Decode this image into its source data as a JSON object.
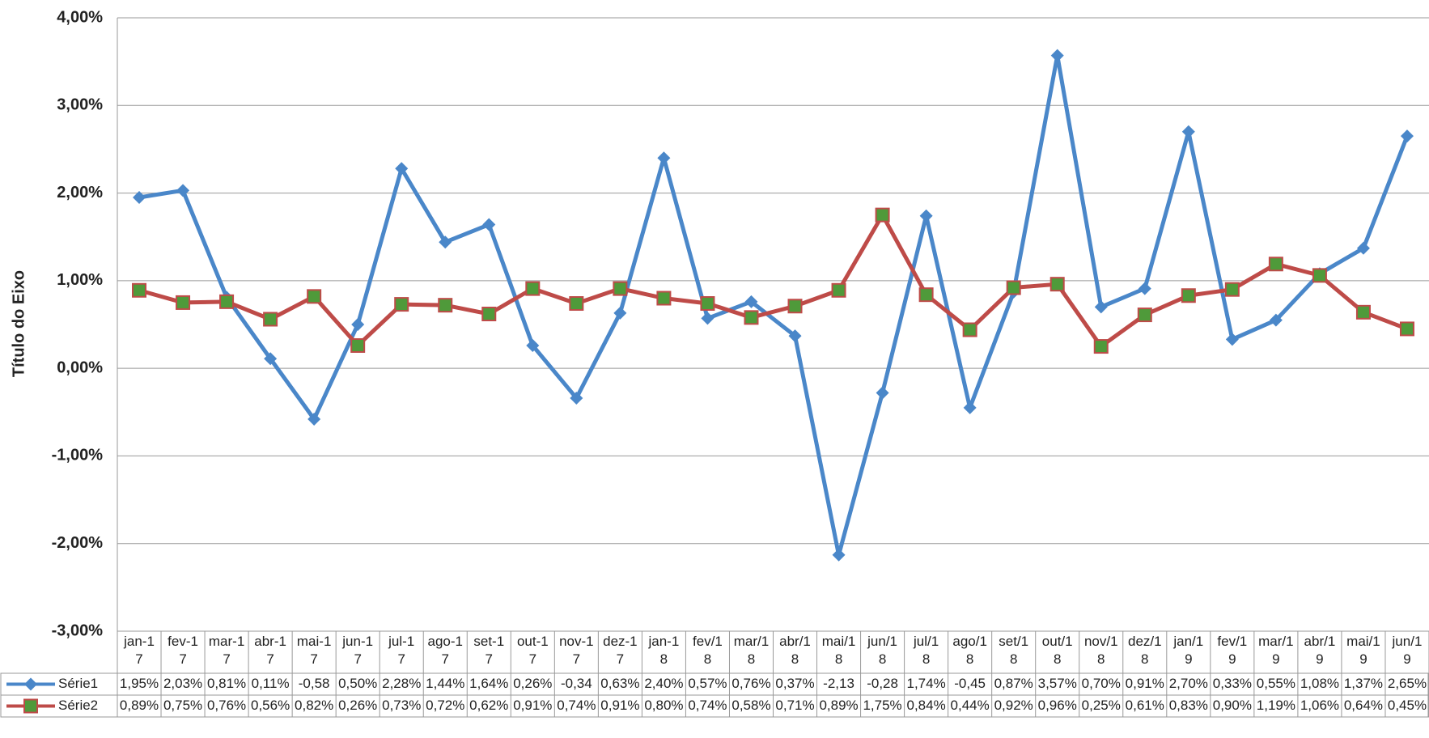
{
  "chart_data": {
    "type": "line",
    "y_label": "Título do Eixo",
    "categories": [
      "jan-17",
      "fev-17",
      "mar-17",
      "abr-17",
      "mai-17",
      "jun-17",
      "jul-17",
      "ago-17",
      "set-17",
      "out-17",
      "nov-17",
      "dez-17",
      "jan-18",
      "fev/18",
      "mar/18",
      "abr/18",
      "mai/18",
      "jun/18",
      "jul/18",
      "ago/18",
      "set/18",
      "out/18",
      "nov/18",
      "dez/18",
      "jan/19",
      "fev/19",
      "mar/19",
      "abr/19",
      "mai/19",
      "jun/19"
    ],
    "series": [
      {
        "name": "Série1",
        "color": "#4a87c9",
        "marker": "diamond",
        "values": [
          1.95,
          2.03,
          0.81,
          0.11,
          -0.58,
          0.5,
          2.28,
          1.44,
          1.64,
          0.26,
          -0.34,
          0.63,
          2.4,
          0.57,
          0.76,
          0.37,
          -2.13,
          -0.28,
          1.74,
          -0.45,
          0.87,
          3.57,
          0.7,
          0.91,
          2.7,
          0.33,
          0.55,
          1.08,
          1.37,
          2.65
        ],
        "value_labels": [
          "1,95%",
          "2,03%",
          "0,81%",
          "0,11%",
          "-0,58",
          "0,50%",
          "2,28%",
          "1,44%",
          "1,64%",
          "0,26%",
          "-0,34",
          "0,63%",
          "2,40%",
          "0,57%",
          "0,76%",
          "0,37%",
          "-2,13",
          "-0,28",
          "1,74%",
          "-0,45",
          "0,87%",
          "3,57%",
          "0,70%",
          "0,91%",
          "2,70%",
          "0,33%",
          "0,55%",
          "1,08%",
          "1,37%",
          "2,65%"
        ]
      },
      {
        "name": "Série2",
        "color": "#be4b48",
        "marker": "square",
        "marker_color": "#4f9a3a",
        "values": [
          0.89,
          0.75,
          0.76,
          0.56,
          0.82,
          0.26,
          0.73,
          0.72,
          0.62,
          0.91,
          0.74,
          0.91,
          0.8,
          0.74,
          0.58,
          0.71,
          0.89,
          1.75,
          0.84,
          0.44,
          0.92,
          0.96,
          0.25,
          0.61,
          0.83,
          0.9,
          1.19,
          1.06,
          0.64,
          0.45
        ],
        "value_labels": [
          "0,89%",
          "0,75%",
          "0,76%",
          "0,56%",
          "0,82%",
          "0,26%",
          "0,73%",
          "0,72%",
          "0,62%",
          "0,91%",
          "0,74%",
          "0,91%",
          "0,80%",
          "0,74%",
          "0,58%",
          "0,71%",
          "0,89%",
          "1,75%",
          "0,84%",
          "0,44%",
          "0,92%",
          "0,96%",
          "0,25%",
          "0,61%",
          "0,83%",
          "0,90%",
          "1,19%",
          "1,06%",
          "0,64%",
          "0,45%"
        ]
      }
    ],
    "ylim": [
      -3,
      4
    ],
    "yticks": [
      {
        "value": -3,
        "label": "-3,00%"
      },
      {
        "value": -2,
        "label": "-2,00%"
      },
      {
        "value": -1,
        "label": "-1,00%"
      },
      {
        "value": 0,
        "label": "0,00%"
      },
      {
        "value": 1,
        "label": "1,00%"
      },
      {
        "value": 2,
        "label": "2,00%"
      },
      {
        "value": 3,
        "label": "3,00%"
      },
      {
        "value": 4,
        "label": "4,00%"
      }
    ],
    "grid": true,
    "data_table": true
  }
}
